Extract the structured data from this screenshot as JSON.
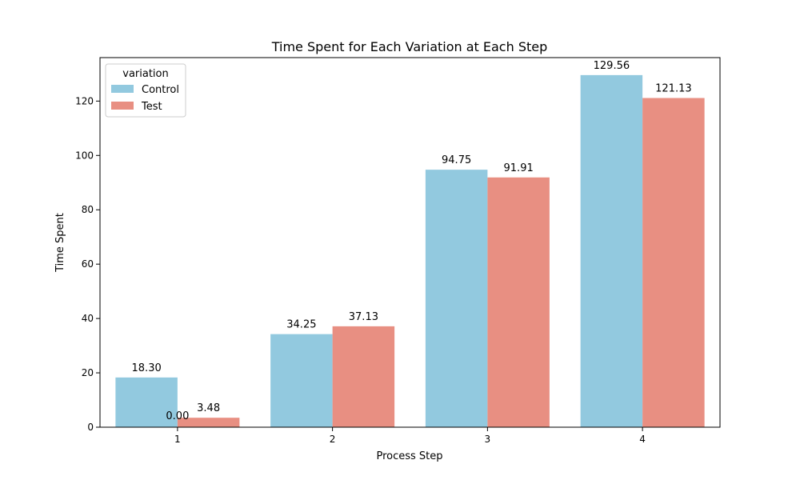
{
  "chart_data": {
    "type": "bar",
    "title": "Time Spent for Each Variation at Each Step",
    "xlabel": "Process Step",
    "ylabel": "Time Spent",
    "categories": [
      "1",
      "2",
      "3",
      "4"
    ],
    "ylim": [
      0,
      136
    ],
    "yticks": [
      0,
      20,
      40,
      60,
      80,
      100,
      120
    ],
    "grid": false,
    "legend": {
      "title": "variation",
      "placement": "top-left"
    },
    "series": [
      {
        "name": "Control",
        "color": "#92c9df",
        "values": [
          18.3,
          34.25,
          94.75,
          129.56
        ],
        "labels": [
          "18.30",
          "34.25",
          "94.75",
          "129.56"
        ]
      },
      {
        "name": "Test",
        "color": "#e88f82",
        "values": [
          3.48,
          37.13,
          91.91,
          121.13
        ],
        "labels": [
          "3.48",
          "37.13",
          "91.91",
          "121.13"
        ]
      }
    ],
    "extra_labels": [
      {
        "text": "0.00",
        "category": "1",
        "value": 0
      }
    ]
  }
}
